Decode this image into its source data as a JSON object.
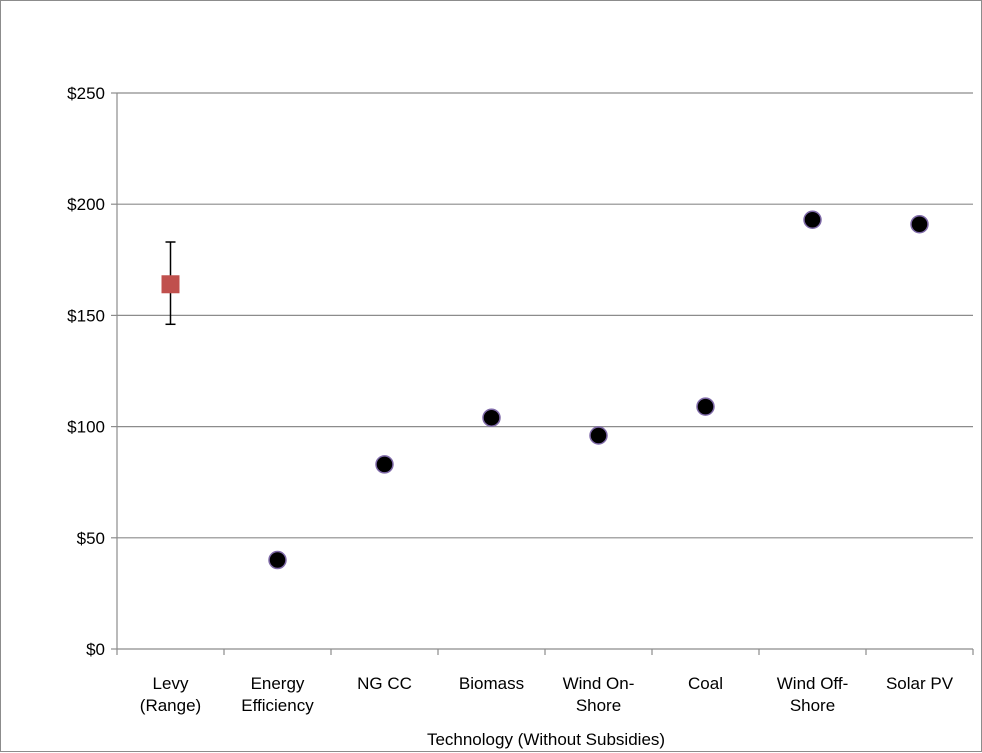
{
  "chart_data": {
    "type": "scatter",
    "title": "",
    "xlabel": "Technology (Without Subsidies)",
    "ylabel": "",
    "categories": [
      [
        "Levy",
        "(Range)"
      ],
      [
        "Energy",
        "Efficiency"
      ],
      [
        "NG CC"
      ],
      [
        "Biomass"
      ],
      [
        "Wind On-",
        "Shore"
      ],
      [
        "Coal"
      ],
      [
        "Wind Off-",
        "Shore"
      ],
      [
        "Solar PV"
      ]
    ],
    "ylim": [
      0,
      250
    ],
    "yticks": [
      0,
      50,
      100,
      150,
      200,
      250
    ],
    "ytick_labels": [
      "$0",
      "$50",
      "$100",
      "$150",
      "$200",
      "$250"
    ],
    "grid": true,
    "series": [
      {
        "marker": "square",
        "color": "#c0504d",
        "points": [
          {
            "category_index": 0,
            "value": 164,
            "error_low": 146,
            "error_high": 183
          }
        ]
      },
      {
        "marker": "circle",
        "color": "#000000",
        "edge_color": "#7f6aa8",
        "points": [
          {
            "category_index": 1,
            "value": 40
          },
          {
            "category_index": 2,
            "value": 83
          },
          {
            "category_index": 3,
            "value": 104
          },
          {
            "category_index": 4,
            "value": 96
          },
          {
            "category_index": 5,
            "value": 109
          },
          {
            "category_index": 6,
            "value": 193
          },
          {
            "category_index": 7,
            "value": 191
          }
        ]
      }
    ]
  }
}
